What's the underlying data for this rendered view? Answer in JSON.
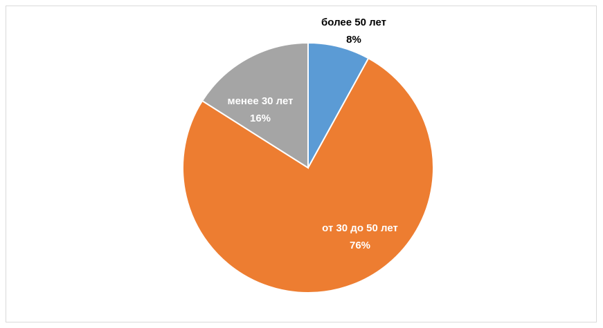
{
  "chart_data": {
    "type": "pie",
    "categories": [
      "более 50 лет",
      "от 30 до 50 лет",
      "менее 30 лет"
    ],
    "values": [
      8,
      76,
      16
    ],
    "value_labels": [
      "8%",
      "76%",
      "16%"
    ],
    "colors": [
      "#5b9bd5",
      "#ed7d31",
      "#a5a5a5"
    ]
  }
}
